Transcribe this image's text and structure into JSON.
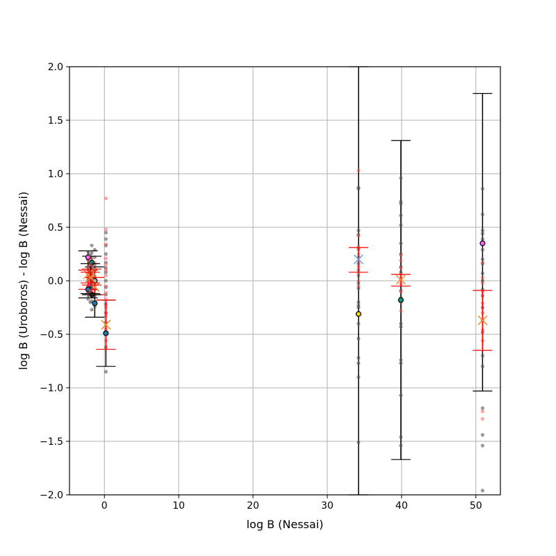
{
  "chart_data": {
    "type": "scatter",
    "title": "",
    "xlabel": "log B (Nessai)",
    "ylabel": "log B (Uroboros) - log B (Nessai)",
    "xlim": [
      -4.7,
      53.3
    ],
    "ylim": [
      -2.0,
      2.0
    ],
    "xticks": [
      0,
      10,
      20,
      30,
      40,
      50
    ],
    "yticks": [
      -2.0,
      -1.5,
      -1.0,
      -0.5,
      0.0,
      0.5,
      1.0,
      1.5,
      2.0
    ],
    "xtick_labels": [
      "0",
      "10",
      "20",
      "30",
      "40",
      "50"
    ],
    "ytick_labels": [
      "−2.0",
      "−1.5",
      "−1.0",
      "−0.5",
      "0.0",
      "0.5",
      "1.0",
      "1.5",
      "2.0"
    ],
    "grid": true,
    "colors": {
      "gray_points": "#555555",
      "red_points": "#ff4d4d",
      "red_errorbar": "#ff0000",
      "black_errorbar": "#000000",
      "marker_blue": "#6fa8dc",
      "marker_orange": "#e69138",
      "grid": "#b0b0b0"
    },
    "series": [
      {
        "x": 34.2,
        "gray_y": [
          0.87,
          0.86,
          0.47,
          0.43,
          0.3,
          0.22,
          0.16,
          0.1,
          0.05,
          -0.02,
          -0.07,
          -0.2,
          -0.23,
          -0.25,
          -0.4,
          -0.54,
          -0.72,
          -0.77,
          -0.9,
          -1.51
        ],
        "red_y": [
          1.03,
          0.42,
          0.32,
          0.29,
          0.25,
          0.19,
          0.13,
          0.07,
          0.0,
          -0.05
        ],
        "highlight": [
          {
            "y": -0.31,
            "color": "#ffd700"
          }
        ],
        "black_err": [
          -2.0,
          2.0
        ],
        "red_err": [
          0.08,
          0.31
        ],
        "marker": {
          "y": 0.2,
          "color": "#6fa8dc"
        }
      },
      {
        "x": 39.9,
        "gray_y": [
          0.96,
          0.74,
          0.72,
          0.61,
          0.52,
          0.35,
          0.25,
          0.13,
          0.08,
          0.02,
          -0.09,
          -0.16,
          -0.4,
          -0.43,
          -0.74,
          -0.77,
          -1.07,
          -1.46,
          -1.54
        ],
        "red_y": [
          0.24,
          0.19,
          0.12,
          0.06,
          0.01,
          -0.03,
          -0.1,
          -0.2,
          -0.28
        ],
        "highlight": [
          {
            "y": -0.18,
            "color": "#00a08a"
          }
        ],
        "black_err": [
          -1.67,
          1.31
        ],
        "red_err": [
          -0.05,
          0.06
        ],
        "marker": {
          "y": 0.01,
          "color": "#e69138"
        }
      },
      {
        "x": 50.9,
        "gray_y": [
          0.86,
          0.62,
          0.47,
          0.44,
          0.39,
          0.29,
          0.2,
          0.16,
          0.07,
          0.0,
          -0.08,
          -0.14,
          -0.25,
          -0.37,
          -0.48,
          -0.7,
          -0.8,
          -1.19,
          -1.44,
          -1.54,
          -1.96
        ],
        "red_y": [
          0.17,
          0.03,
          -0.02,
          -0.1,
          -0.21,
          -0.3,
          -0.46,
          -0.56,
          -1.22,
          -1.29
        ],
        "highlight": [
          {
            "y": 0.35,
            "color": "#ff66ff"
          }
        ],
        "black_err": [
          -1.03,
          1.75
        ],
        "red_err": [
          -0.65,
          -0.09
        ],
        "marker": {
          "y": -0.37,
          "color": "#e69138"
        }
      },
      {
        "x": 0.2,
        "gray_y": [
          0.45,
          0.39,
          0.33,
          0.25,
          0.17,
          0.12,
          0.08,
          0.0,
          -0.06,
          -0.13,
          -0.22,
          -0.3,
          -0.39,
          -0.62,
          -0.85
        ],
        "red_y": [
          0.77,
          0.48,
          0.34,
          0.21,
          0.15,
          0.1,
          0.05,
          -0.05,
          -0.11,
          -0.17,
          -0.25,
          -0.3,
          -0.33,
          -0.45,
          -0.56
        ],
        "highlight": [
          {
            "y": -0.49,
            "color": "#1f77b4"
          }
        ],
        "black_err": [
          -0.8,
          -0.18
        ],
        "red_err": [
          -0.64,
          -0.18
        ],
        "marker": {
          "y": -0.41,
          "color": "#e69138"
        }
      },
      {
        "x": -1.3,
        "gray_y": [
          0.29,
          0.22,
          0.15,
          0.1,
          0.04,
          -0.02,
          -0.08,
          -0.14,
          -0.24
        ],
        "red_y": [
          0.17,
          0.1,
          0.04,
          -0.01,
          -0.06,
          -0.12
        ],
        "highlight": [
          {
            "y": -0.21,
            "color": "#1f77b4"
          },
          {
            "y": 0.0,
            "color": "#b0b0b0"
          }
        ],
        "black_err": [
          -0.34,
          0.13
        ],
        "red_err": [
          -0.13,
          0.03
        ],
        "marker": {
          "y": -0.06,
          "color": "#e69138"
        }
      },
      {
        "x": -1.7,
        "gray_y": [
          0.33,
          0.26,
          0.18,
          0.12,
          0.06,
          0.0,
          -0.07,
          -0.14,
          -0.19,
          -0.27
        ],
        "red_y": [
          0.21,
          0.14,
          0.08,
          0.02,
          -0.04,
          -0.1
        ],
        "highlight": [
          {
            "y": 0.17,
            "color": "#00a08a"
          },
          {
            "y": -0.13,
            "color": "#222222"
          }
        ],
        "black_err": [
          -0.13,
          0.23
        ],
        "red_err": [
          -0.04,
          0.11
        ],
        "marker": {
          "y": 0.08,
          "color": "#e69138"
        }
      },
      {
        "x": -2.2,
        "gray_y": [
          0.27,
          0.2,
          0.13,
          0.07,
          0.01,
          -0.05,
          -0.11,
          -0.17
        ],
        "red_y": [
          0.19,
          0.12,
          0.06,
          0.0,
          -0.05,
          -0.12
        ],
        "highlight": [
          {
            "y": 0.22,
            "color": "#ff66ff"
          },
          {
            "y": -0.08,
            "color": "#1f77b4"
          }
        ],
        "black_err": [
          -0.16,
          0.28
        ],
        "red_err": [
          -0.08,
          0.1
        ],
        "marker": {
          "y": 0.06,
          "color": "#e69138"
        }
      },
      {
        "x": -1.9,
        "gray_y": [
          0.24,
          0.16,
          0.08,
          0.02,
          -0.04,
          -0.1,
          -0.2
        ],
        "red_y": [
          0.15,
          0.09,
          0.03,
          -0.03,
          -0.09
        ],
        "highlight": [],
        "black_err": [
          -0.12,
          0.16
        ],
        "red_err": [
          -0.02,
          0.08
        ],
        "marker": {
          "y": 0.03,
          "color": "#e69138"
        }
      }
    ]
  }
}
